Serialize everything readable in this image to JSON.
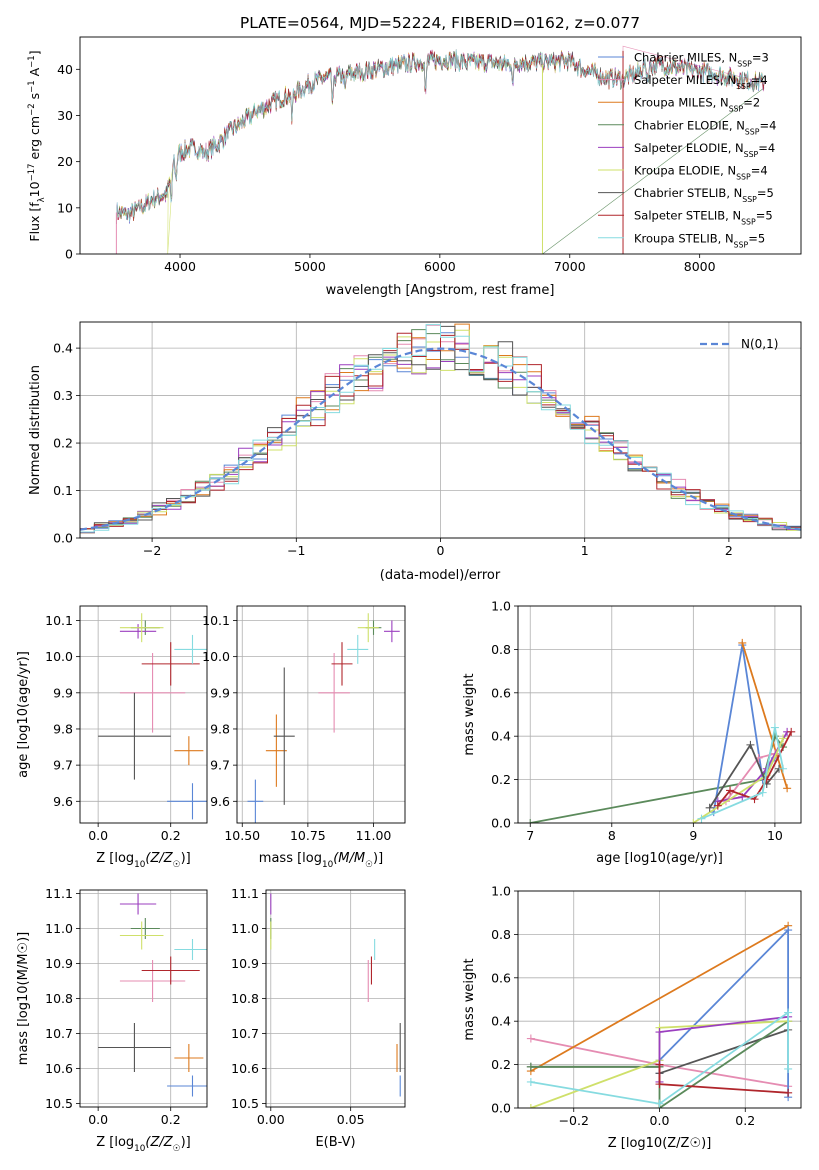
{
  "figure_title": "PLATE=0564, MJD=52224, FIBERID=0162, z=0.077",
  "colors": {
    "Chabrier MILES": "#5a86d6",
    "Salpeter MILES": "#e58cb2",
    "Kroupa MILES": "#dd7a1e",
    "Chabrier ELODIE": "#5b8a5b",
    "Salpeter ELODIE": "#9b3fbf",
    "Kroupa ELODIE": "#cfe06a",
    "Chabrier STELIB": "#555555",
    "Salpeter STELIB": "#b0262c",
    "Kroupa STELIB": "#86dbe0"
  },
  "models": [
    {
      "name": "Chabrier MILES",
      "nssp": "3"
    },
    {
      "name": "Salpeter MILES",
      "nssp": "4"
    },
    {
      "name": "Kroupa MILES",
      "nssp": "2"
    },
    {
      "name": "Chabrier ELODIE",
      "nssp": "4"
    },
    {
      "name": "Salpeter ELODIE",
      "nssp": "4"
    },
    {
      "name": "Kroupa ELODIE",
      "nssp": "4"
    },
    {
      "name": "Chabrier STELIB",
      "nssp": "5"
    },
    {
      "name": "Salpeter STELIB",
      "nssp": "5"
    },
    {
      "name": "Kroupa STELIB",
      "nssp": "5"
    }
  ],
  "legend_nssp_label": "N",
  "legend_nssp_sub": "SSP",
  "chart_data": [
    {
      "id": "spectrum",
      "type": "line",
      "xlabel": "wavelength [Angstrom, rest frame]",
      "ylabel_main": "Flux [f",
      "ylabel_sub": "λ",
      "ylabel_rest": "10",
      "ylabel_exp": "−17",
      "ylabel_units": " erg cm",
      "ylabel_exp2": "−2",
      "ylabel_units2": " s",
      "ylabel_exp3": "−1",
      "ylabel_units3": " A",
      "ylabel_exp4": "−1",
      "ylabel_end": "]",
      "xlim": [
        3230,
        8780
      ],
      "ylim": [
        0,
        47
      ],
      "xticks": [
        "4000",
        "5000",
        "6000",
        "7000",
        "8000"
      ],
      "yticks": [
        "0",
        "10",
        "20",
        "30",
        "40"
      ],
      "legend_position": "right",
      "envelope": {
        "x": [
          3510,
          3600,
          3700,
          3800,
          3900,
          3950,
          4000,
          4100,
          4200,
          4300,
          4400,
          4500,
          4600,
          4700,
          4800,
          4900,
          5000,
          5100,
          5200,
          5300,
          5400,
          5500,
          5600,
          5700,
          5800,
          5900,
          6000,
          6100,
          6200,
          6300,
          6400,
          6500,
          6600,
          6700,
          6800,
          6900,
          7000,
          7100,
          7200,
          7300,
          7400,
          7500,
          7600,
          7700,
          7800,
          7900,
          8000,
          8100,
          8200,
          8300,
          8400,
          8500
        ],
        "y": [
          9,
          8.5,
          10,
          12,
          13,
          20,
          22,
          23,
          22,
          24,
          27,
          29,
          31,
          32.5,
          34,
          35,
          37,
          38,
          38.5,
          39,
          39.5,
          40,
          40.5,
          41,
          41.5,
          42,
          42,
          42,
          41.5,
          41.5,
          41.5,
          41,
          41.5,
          41.5,
          41.5,
          41.5,
          42,
          40,
          39,
          38,
          38,
          39,
          40.5,
          41,
          40.5,
          40,
          39.5,
          39,
          38.5,
          38,
          37.5,
          37
        ]
      }
    },
    {
      "id": "residuals",
      "type": "step-histogram",
      "xlabel": "(data-model)/error",
      "ylabel": "Normed distribution",
      "xlim": [
        -2.5,
        2.5
      ],
      "ylim": [
        0,
        0.455
      ],
      "xticks": [
        "−2",
        "−1",
        "0",
        "1",
        "2"
      ],
      "yticks": [
        "0.0",
        "0.1",
        "0.2",
        "0.3",
        "0.4"
      ],
      "bin_width": 0.1,
      "reference_label": "N(0,1)",
      "reference_series": "standard normal pdf",
      "legend_position": "top-right",
      "envelope": {
        "x": [
          -2.5,
          -2.0,
          -1.5,
          -1.0,
          -0.5,
          0.0,
          0.5,
          1.0,
          1.5,
          2.0,
          2.5
        ],
        "y": [
          0.03,
          0.06,
          0.13,
          0.23,
          0.33,
          0.39,
          0.35,
          0.24,
          0.13,
          0.06,
          0.02
        ]
      }
    },
    {
      "id": "age-vs-Z",
      "type": "scatter",
      "xlabel": "Z [log",
      "xlabel_sub": "10",
      "xlabel_end": "(Z/Z",
      "xlabel_sun": "☉",
      "xlabel_close": ")]",
      "ylabel": "age  [log10(age/yr)]",
      "xlim": [
        -0.05,
        0.3
      ],
      "ylim": [
        9.54,
        10.14
      ],
      "xticks": [
        "0.0",
        "0.2"
      ],
      "yticks": [
        "9.6",
        "9.7",
        "9.8",
        "9.9",
        "10.0",
        "10.1"
      ],
      "points": [
        {
          "series": "Chabrier MILES",
          "x": 0.26,
          "y": 9.6,
          "xerr": 0.07,
          "yerr": 0.05
        },
        {
          "series": "Salpeter MILES",
          "x": 0.15,
          "y": 9.9,
          "xerr": 0.09,
          "yerr": 0.11
        },
        {
          "series": "Kroupa MILES",
          "x": 0.25,
          "y": 9.74,
          "xerr": 0.04,
          "yerr": 0.04
        },
        {
          "series": "Chabrier ELODIE",
          "x": 0.13,
          "y": 10.08,
          "xerr": 0.04,
          "yerr": 0.02
        },
        {
          "series": "Salpeter ELODIE",
          "x": 0.11,
          "y": 10.07,
          "xerr": 0.05,
          "yerr": 0.02
        },
        {
          "series": "Kroupa ELODIE",
          "x": 0.12,
          "y": 10.08,
          "xerr": 0.06,
          "yerr": 0.04
        },
        {
          "series": "Chabrier STELIB",
          "x": 0.1,
          "y": 9.78,
          "xerr": 0.1,
          "yerr": 0.12
        },
        {
          "series": "Salpeter STELIB",
          "x": 0.2,
          "y": 9.98,
          "xerr": 0.08,
          "yerr": 0.06
        },
        {
          "series": "Kroupa STELIB",
          "x": 0.26,
          "y": 10.02,
          "xerr": 0.05,
          "yerr": 0.04
        }
      ]
    },
    {
      "id": "age-vs-mass",
      "type": "scatter",
      "xlabel": "mass [log",
      "xlabel_sub": "10",
      "xlabel_end": "(M/M",
      "xlabel_sun": "☉",
      "xlabel_close": ")]",
      "xlim": [
        10.48,
        11.12
      ],
      "ylim": [
        9.54,
        10.14
      ],
      "xticks": [
        "10.50",
        "10.75",
        "11.00"
      ],
      "yticks": [
        "9.6",
        "9.7",
        "9.8",
        "9.9",
        "10.0",
        "10.1"
      ],
      "points": [
        {
          "series": "Chabrier MILES",
          "x": 10.55,
          "y": 9.6,
          "xerr": 0.03,
          "yerr": 0.06
        },
        {
          "series": "Salpeter MILES",
          "x": 10.85,
          "y": 9.9,
          "xerr": 0.06,
          "yerr": 0.11
        },
        {
          "series": "Kroupa MILES",
          "x": 10.63,
          "y": 9.74,
          "xerr": 0.04,
          "yerr": 0.1
        },
        {
          "series": "Chabrier ELODIE",
          "x": 11.0,
          "y": 10.08,
          "xerr": 0.03,
          "yerr": 0.02
        },
        {
          "series": "Salpeter ELODIE",
          "x": 11.07,
          "y": 10.07,
          "xerr": 0.03,
          "yerr": 0.03
        },
        {
          "series": "Kroupa ELODIE",
          "x": 10.98,
          "y": 10.08,
          "xerr": 0.04,
          "yerr": 0.04
        },
        {
          "series": "Chabrier STELIB",
          "x": 10.66,
          "y": 9.78,
          "xerr": 0.04,
          "yerr": 0.19
        },
        {
          "series": "Salpeter STELIB",
          "x": 10.88,
          "y": 9.98,
          "xerr": 0.04,
          "yerr": 0.06
        },
        {
          "series": "Kroupa STELIB",
          "x": 10.94,
          "y": 10.02,
          "xerr": 0.04,
          "yerr": 0.04
        }
      ]
    },
    {
      "id": "weight-vs-age",
      "type": "line",
      "xlabel": "age  [log10(age/yr)]",
      "ylabel": "mass weight",
      "xlim": [
        6.85,
        10.32
      ],
      "ylim": [
        0,
        1
      ],
      "xticks": [
        "7",
        "8",
        "9",
        "10"
      ],
      "yticks": [
        "0.0",
        "0.2",
        "0.4",
        "0.6",
        "0.8",
        "1.0"
      ],
      "series": [
        {
          "name": "Chabrier ELODIE",
          "x": [
            7.0,
            9.85,
            10.0,
            10.1
          ],
          "y": [
            0.0,
            0.2,
            0.4,
            0.35
          ]
        },
        {
          "name": "Chabrier MILES",
          "x": [
            9.25,
            9.6,
            9.85,
            10.0
          ],
          "y": [
            0.05,
            0.82,
            0.2,
            0.3
          ]
        },
        {
          "name": "Kroupa MILES",
          "x": [
            9.6,
            10.15
          ],
          "y": [
            0.83,
            0.16
          ]
        },
        {
          "name": "Salpeter MILES",
          "x": [
            9.4,
            9.8,
            10.0
          ],
          "y": [
            0.1,
            0.3,
            0.32
          ]
        },
        {
          "name": "Salpeter ELODIE",
          "x": [
            9.3,
            9.6,
            9.9,
            10.15
          ],
          "y": [
            0.1,
            0.12,
            0.25,
            0.42
          ]
        },
        {
          "name": "Kroupa ELODIE",
          "x": [
            9.0,
            9.9,
            10.1
          ],
          "y": [
            0.0,
            0.22,
            0.39
          ]
        },
        {
          "name": "Chabrier STELIB",
          "x": [
            9.2,
            9.7,
            9.9,
            10.05
          ],
          "y": [
            0.07,
            0.36,
            0.18,
            0.25
          ]
        },
        {
          "name": "Salpeter STELIB",
          "x": [
            9.3,
            9.45,
            9.75,
            9.9,
            10.2
          ],
          "y": [
            0.08,
            0.15,
            0.11,
            0.2,
            0.42
          ]
        },
        {
          "name": "Kroupa STELIB",
          "x": [
            9.1,
            9.85,
            10.0,
            10.1
          ],
          "y": [
            0.02,
            0.14,
            0.44,
            0.25
          ]
        }
      ]
    },
    {
      "id": "mass-vs-Z",
      "type": "scatter",
      "xlabel": "Z [log",
      "xlabel_sub": "10",
      "xlabel_end": "(Z/Z",
      "xlabel_sun": "☉",
      "xlabel_close": ")]",
      "ylabel": "mass [log10(M/M☉)]",
      "xlim": [
        -0.05,
        0.3
      ],
      "ylim": [
        10.49,
        11.11
      ],
      "xticks": [
        "0.0",
        "0.2"
      ],
      "yticks": [
        "10.5",
        "10.6",
        "10.7",
        "10.8",
        "10.9",
        "11.0",
        "11.1"
      ],
      "points": [
        {
          "series": "Chabrier MILES",
          "x": 0.26,
          "y": 10.55,
          "xerr": 0.07,
          "yerr": 0.03
        },
        {
          "series": "Salpeter MILES",
          "x": 0.15,
          "y": 10.85,
          "xerr": 0.09,
          "yerr": 0.06
        },
        {
          "series": "Kroupa MILES",
          "x": 0.25,
          "y": 10.63,
          "xerr": 0.04,
          "yerr": 0.04
        },
        {
          "series": "Chabrier ELODIE",
          "x": 0.13,
          "y": 11.0,
          "xerr": 0.04,
          "yerr": 0.03
        },
        {
          "series": "Salpeter ELODIE",
          "x": 0.11,
          "y": 11.07,
          "xerr": 0.05,
          "yerr": 0.03
        },
        {
          "series": "Kroupa ELODIE",
          "x": 0.12,
          "y": 10.98,
          "xerr": 0.06,
          "yerr": 0.04
        },
        {
          "series": "Chabrier STELIB",
          "x": 0.1,
          "y": 10.66,
          "xerr": 0.1,
          "yerr": 0.07
        },
        {
          "series": "Salpeter STELIB",
          "x": 0.2,
          "y": 10.88,
          "xerr": 0.08,
          "yerr": 0.04
        },
        {
          "series": "Kroupa STELIB",
          "x": 0.26,
          "y": 10.94,
          "xerr": 0.05,
          "yerr": 0.03
        }
      ]
    },
    {
      "id": "mass-vs-ebv",
      "type": "scatter",
      "xlabel": "E(B-V)",
      "xlim": [
        -0.003,
        0.084
      ],
      "ylim": [
        10.49,
        11.11
      ],
      "xticks": [
        "0.00",
        "0.05"
      ],
      "yticks": [
        "10.5",
        "10.6",
        "10.7",
        "10.8",
        "10.9",
        "11.0",
        "11.1"
      ],
      "points": [
        {
          "series": "Chabrier MILES",
          "x": 0.081,
          "y": 10.55,
          "yerr": 0.03
        },
        {
          "series": "Salpeter MILES",
          "x": 0.061,
          "y": 10.85,
          "yerr": 0.06
        },
        {
          "series": "Kroupa MILES",
          "x": 0.079,
          "y": 10.63,
          "yerr": 0.04
        },
        {
          "series": "Chabrier ELODIE",
          "x": 0.0,
          "y": 11.0,
          "yerr": 0.03
        },
        {
          "series": "Salpeter ELODIE",
          "x": 0.0,
          "y": 11.07,
          "yerr": 0.03
        },
        {
          "series": "Kroupa ELODIE",
          "x": 0.0,
          "y": 10.98,
          "yerr": 0.04
        },
        {
          "series": "Chabrier STELIB",
          "x": 0.081,
          "y": 10.66,
          "yerr": 0.07
        },
        {
          "series": "Salpeter STELIB",
          "x": 0.063,
          "y": 10.88,
          "yerr": 0.04
        },
        {
          "series": "Kroupa STELIB",
          "x": 0.065,
          "y": 10.94,
          "yerr": 0.03
        }
      ]
    },
    {
      "id": "weight-vs-Z",
      "type": "line",
      "xlabel": "Z [log10(Z/Z☉)]",
      "ylabel": "mass weight",
      "xlim": [
        -0.33,
        0.33
      ],
      "ylim": [
        0,
        1
      ],
      "xticks": [
        "−0.2",
        "0.0",
        "0.2"
      ],
      "yticks": [
        "0.0",
        "0.2",
        "0.4",
        "0.6",
        "0.8",
        "1.0"
      ],
      "series": [
        {
          "name": "Salpeter MILES",
          "x": [
            -0.3,
            0.0,
            0.3
          ],
          "y": [
            0.32,
            0.2,
            0.1
          ]
        },
        {
          "name": "Kroupa MILES",
          "x": [
            -0.3,
            0.3
          ],
          "y": [
            0.17,
            0.84
          ]
        },
        {
          "name": "Chabrier MILES",
          "x": [
            0.0,
            0.0,
            0.3,
            0.3
          ],
          "y": [
            0.16,
            0.22,
            0.82,
            0.05
          ]
        },
        {
          "name": "Chabrier STELIB",
          "x": [
            -0.3,
            0.0,
            0.0,
            0.3
          ],
          "y": [
            0.19,
            0.19,
            0.16,
            0.36
          ]
        },
        {
          "name": "Chabrier ELODIE",
          "x": [
            -0.3,
            0.0,
            0.0,
            0.3
          ],
          "y": [
            0.19,
            0.19,
            0.0,
            0.4
          ]
        },
        {
          "name": "Kroupa ELODIE",
          "x": [
            -0.3,
            0.0,
            0.0,
            0.3
          ],
          "y": [
            0.0,
            0.22,
            0.37,
            0.4
          ]
        },
        {
          "name": "Salpeter ELODIE",
          "x": [
            0.0,
            0.0,
            0.3
          ],
          "y": [
            0.12,
            0.35,
            0.42
          ]
        },
        {
          "name": "Salpeter STELIB",
          "x": [
            0.0,
            0.0,
            0.3
          ],
          "y": [
            0.2,
            0.11,
            0.07
          ]
        },
        {
          "name": "Kroupa STELIB",
          "x": [
            -0.3,
            0.0,
            0.3,
            0.3
          ],
          "y": [
            0.12,
            0.02,
            0.44,
            0.18
          ]
        }
      ]
    }
  ]
}
